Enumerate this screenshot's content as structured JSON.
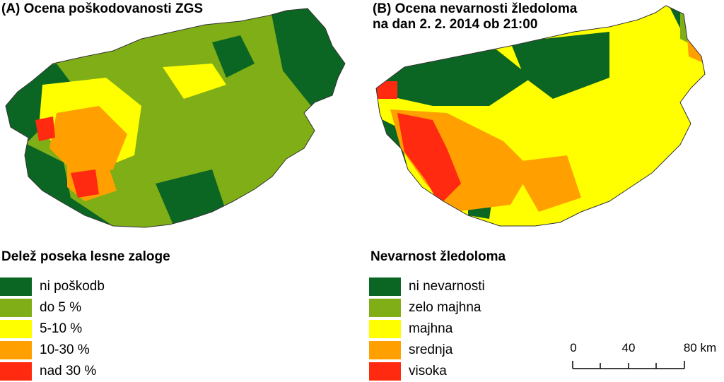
{
  "panel_a": {
    "title": "(A) Ocena poškodovanosti ZGS",
    "legend_title": "Delež poseka lesne zaloge",
    "legend": [
      {
        "label": "ni poškodb",
        "color": "#0b6623"
      },
      {
        "label": "do 5 %",
        "color": "#7fae16"
      },
      {
        "label": "5-10 %",
        "color": "#ffff00"
      },
      {
        "label": "10-30 %",
        "color": "#ffa000"
      },
      {
        "label": "nad 30 %",
        "color": "#ff2a10"
      }
    ]
  },
  "panel_b": {
    "title_line1": "(B) Ocena nevarnosti žledoloma",
    "title_line2": "na dan 2. 2. 2014 ob 21:00",
    "legend_title": "Nevarnost žledoloma",
    "legend": [
      {
        "label": "ni nevarnosti",
        "color": "#0b6623"
      },
      {
        "label": "zelo majhna",
        "color": "#7fae16"
      },
      {
        "label": "majhna",
        "color": "#ffff00"
      },
      {
        "label": "srednja",
        "color": "#ffa000"
      },
      {
        "label": "visoka",
        "color": "#ff2a10"
      }
    ]
  },
  "scalebar": {
    "labels": [
      "0",
      "40",
      "80 km"
    ]
  }
}
